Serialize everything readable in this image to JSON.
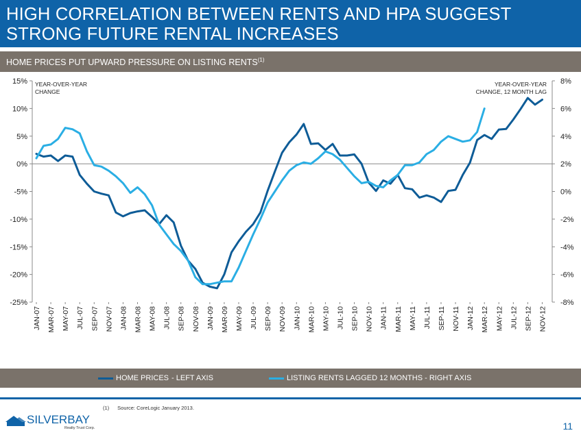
{
  "header": {
    "title_line1": "HIGH CORRELATION BETWEEN RENTS AND HPA SUGGEST",
    "title_line2": "STRONG FUTURE RENTAL INCREASES",
    "subtitle": "HOME PRICES PUT UPWARD PRESSURE ON LISTING RENTS",
    "subtitle_note": "(1)"
  },
  "colors": {
    "brand_blue": "#0f63a8",
    "band_gray": "#7a726a",
    "home_prices": "#0e5c97",
    "listing_rents": "#2aaee4"
  },
  "chart_data": {
    "type": "line",
    "left_axis": {
      "label": "YEAR-OVER-YEAR\nCHANGE",
      "label_lines": [
        "YEAR-OVER-YEAR",
        "CHANGE"
      ],
      "ylim": [
        -25,
        15
      ],
      "ticks": [
        15,
        10,
        5,
        0,
        -5,
        -10,
        -15,
        -20,
        -25
      ],
      "tick_labels": [
        "15%",
        "10%",
        "5%",
        "0%",
        "-5%",
        "-10%",
        "-15%",
        "-20%",
        "-25%"
      ]
    },
    "right_axis": {
      "label_lines": [
        "YEAR-OVER-YEAR",
        "CHANGE, 12 MONTH LAG"
      ],
      "ylim": [
        -8,
        8
      ],
      "ticks": [
        8,
        6,
        4,
        2,
        0,
        -2,
        -4,
        -6,
        -8
      ],
      "tick_labels": [
        "8%",
        "6%",
        "4%",
        "2%",
        "0%",
        "-2%",
        "-4%",
        "-6%",
        "-8%"
      ]
    },
    "x_tick_labels": [
      "JAN-07",
      "MAR-07",
      "MAY-07",
      "JUL-07",
      "SEP-07",
      "NOV-07",
      "JAN-08",
      "MAR-08",
      "MAY-08",
      "JUL-08",
      "SEP-08",
      "NOV-08",
      "JAN-09",
      "MAR-09",
      "MAY-09",
      "JUL-09",
      "SEP-09",
      "NOV-09",
      "JAN-10",
      "MAR-10",
      "MAY-10",
      "JUL-10",
      "SEP-10",
      "NOV-10",
      "JAN-11",
      "MAR-11",
      "MAY-11",
      "JUL-11",
      "SEP-11",
      "NOV-11",
      "JAN-12",
      "MAR-12",
      "MAY-12",
      "JUL-12",
      "SEP-12",
      "NOV-12"
    ],
    "series": [
      {
        "name": "HOME PRICES - LEFT AXIS",
        "axis": "left",
        "color": "#0e5c97",
        "values": [
          1.8,
          1.3,
          1.5,
          0.5,
          1.5,
          1.3,
          -2.0,
          -3.6,
          -5.0,
          -5.4,
          -5.7,
          -8.8,
          -9.5,
          -8.9,
          -8.6,
          -8.4,
          -9.6,
          -10.9,
          -9.3,
          -10.6,
          -14.8,
          -17.5,
          -19.0,
          -21.5,
          -22.2,
          -22.5,
          -20.0,
          -16.0,
          -14.0,
          -12.3,
          -10.9,
          -8.8,
          -4.9,
          -1.4,
          2.0,
          3.9,
          5.3,
          7.2,
          3.6,
          3.7,
          2.5,
          3.6,
          1.5,
          1.5,
          1.7,
          0.0,
          -3.4,
          -4.9,
          -3.0,
          -3.6,
          -2.0,
          -4.4,
          -4.6,
          -6.1,
          -5.7,
          -6.1,
          -6.9,
          -4.9,
          -4.7,
          -2.0,
          0.2,
          4.3,
          5.2,
          4.5,
          6.2,
          6.3,
          8.0,
          9.9,
          11.9,
          10.7,
          11.6
        ]
      },
      {
        "name": "LISTING RENTS LAGGED 12 MONTHS - RIGHT AXIS",
        "axis": "right",
        "color": "#2aaee4",
        "values": [
          2.4,
          3.3,
          3.4,
          3.8,
          4.6,
          4.5,
          4.2,
          2.9,
          1.9,
          1.8,
          1.5,
          1.1,
          0.6,
          -0.1,
          0.3,
          -0.2,
          -1.0,
          -2.4,
          -3.1,
          -3.8,
          -4.3,
          -5.0,
          -6.2,
          -6.7,
          -6.7,
          -6.6,
          -6.5,
          -6.5,
          -5.5,
          -4.3,
          -3.1,
          -2.0,
          -0.8,
          0.0,
          0.8,
          1.5,
          1.9,
          2.1,
          2.0,
          2.4,
          2.9,
          2.7,
          2.3,
          1.7,
          1.1,
          0.6,
          0.7,
          0.4,
          0.3,
          0.8,
          1.2,
          1.9,
          1.9,
          2.1,
          2.7,
          3.0,
          3.6,
          4.0,
          3.8,
          3.6,
          3.7,
          4.3,
          6.0
        ]
      }
    ],
    "grid": false,
    "legend_position": "bottom"
  },
  "legend": {
    "home_prices_label": "HOME PRICES",
    "home_prices_suffix": "- LEFT AXIS",
    "listing_rents_label": "LISTING RENTS LAGGED 12 MONTHS - RIGHT AXIS"
  },
  "footer": {
    "footnote_marker": "(1)",
    "footnote_text": "Source: CoreLogic January 2013.",
    "logo_name": "SILVERBAY",
    "logo_tagline": "Realty Trust Corp.",
    "page_number": "11"
  }
}
